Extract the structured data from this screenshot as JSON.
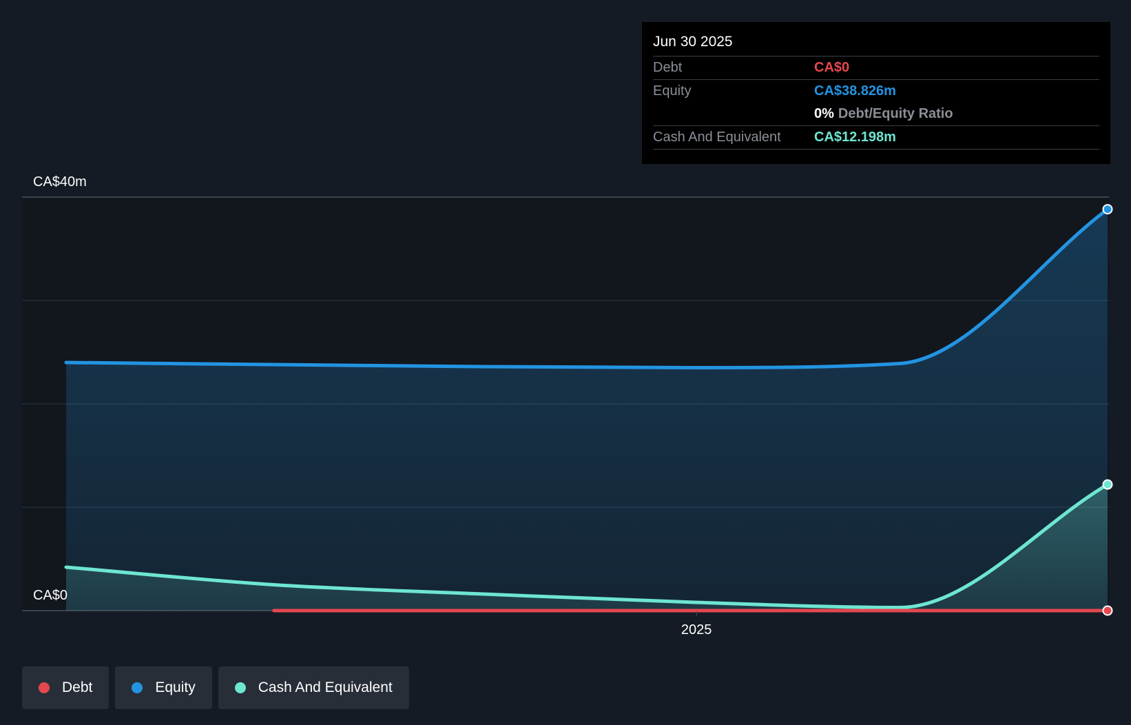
{
  "colors": {
    "debt": "#e5474f",
    "equity": "#2394e2",
    "cash": "#6ee6d1",
    "background": "#151b24",
    "grid": "#2f3742"
  },
  "tooltip": {
    "date": "Jun 30 2025",
    "rows": [
      {
        "label": "Debt",
        "value": "CA$0"
      },
      {
        "label": "Equity",
        "value": "CA$38.826m"
      },
      {
        "label": "",
        "ratio_value": "0%",
        "ratio_label": "Debt/Equity Ratio"
      },
      {
        "label": "Cash And Equivalent",
        "value": "CA$12.198m"
      }
    ]
  },
  "legend": [
    {
      "label": "Debt"
    },
    {
      "label": "Equity"
    },
    {
      "label": "Cash And Equivalent"
    }
  ],
  "chart_data": {
    "type": "area",
    "title": "",
    "xlabel": "",
    "ylabel": "",
    "ylim": [
      0,
      40
    ],
    "y_unit": "CA$m",
    "y_tick_labels": [
      "CA$0",
      "CA$40m"
    ],
    "x_tick_labels": [
      "2025"
    ],
    "grid": true,
    "legend_position": "bottom-left",
    "x": [
      "2024-03-31",
      "2024-06-30",
      "2024-09-30",
      "2024-12-31",
      "2025-03-31",
      "2025-06-30"
    ],
    "series": [
      {
        "name": "Equity",
        "values": [
          24.0,
          23.8,
          23.6,
          23.5,
          23.9,
          38.826
        ]
      },
      {
        "name": "Cash And Equivalent",
        "values": [
          4.2,
          2.5,
          1.6,
          0.8,
          0.3,
          12.198
        ]
      },
      {
        "name": "Debt",
        "values": [
          null,
          0,
          0,
          0,
          0,
          0
        ]
      }
    ]
  }
}
